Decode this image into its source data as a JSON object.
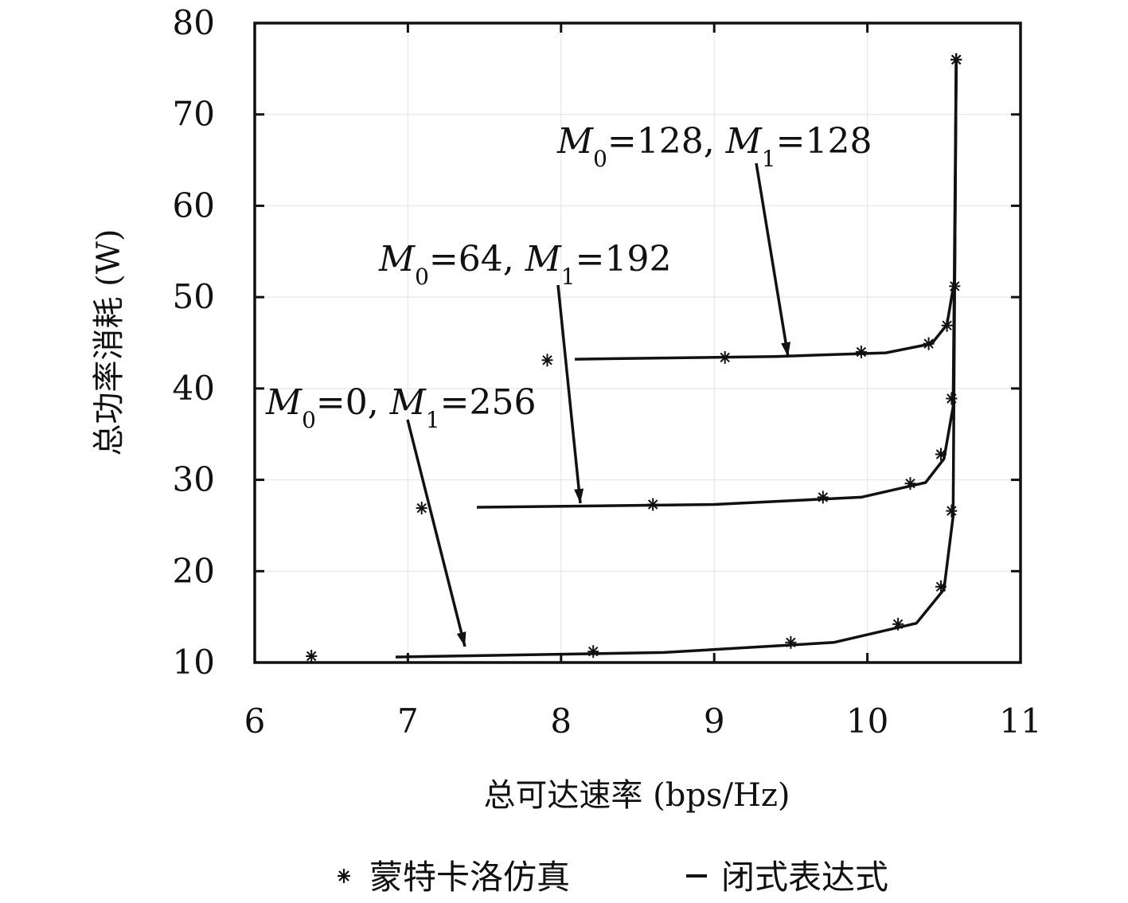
{
  "chart_data": {
    "type": "line",
    "title": "",
    "xlabel": "总可达速率 (bps/Hz)",
    "ylabel": "总功率消耗 (W)",
    "xlim": [
      6,
      11
    ],
    "ylim": [
      10,
      80
    ],
    "xticks": [
      "6",
      "7",
      "8",
      "9",
      "10",
      "11"
    ],
    "yticks": [
      "10",
      "20",
      "30",
      "40",
      "50",
      "60",
      "70",
      "80"
    ],
    "grid": true,
    "legend": {
      "placement": "bottom",
      "entries": [
        {
          "symbol": "*",
          "label": "蒙特卡洛仿真"
        },
        {
          "symbol": "–",
          "label": "闭式表达式"
        }
      ]
    },
    "series": [
      {
        "annotation": {
          "m0": "0",
          "m1": "256"
        },
        "line": {
          "x": [
            6.92,
            8.67,
            9.78,
            10.32,
            10.5,
            10.56,
            10.58
          ],
          "y": [
            10.6,
            11.1,
            12.2,
            14.3,
            18.0,
            26.0,
            76.0
          ]
        },
        "markers": {
          "x": [
            6.37,
            8.21,
            9.5,
            10.2,
            10.48,
            10.55,
            10.58
          ],
          "y": [
            10.7,
            11.2,
            12.2,
            14.2,
            18.3,
            26.6,
            76.0
          ]
        }
      },
      {
        "annotation": {
          "m0": "64",
          "m1": "192"
        },
        "line": {
          "x": [
            7.45,
            9.0,
            9.96,
            10.38,
            10.5,
            10.56,
            10.58
          ],
          "y": [
            27.0,
            27.3,
            28.1,
            29.7,
            32.3,
            38.0,
            76.0
          ]
        },
        "markers": {
          "x": [
            7.09,
            8.6,
            9.71,
            10.28,
            10.48,
            10.55,
            10.58
          ],
          "y": [
            26.9,
            27.3,
            28.1,
            29.6,
            32.8,
            38.9,
            76.0
          ]
        }
      },
      {
        "annotation": {
          "m0": "128",
          "m1": "128"
        },
        "line": {
          "x": [
            8.09,
            9.4,
            10.12,
            10.42,
            10.52,
            10.57,
            10.58
          ],
          "y": [
            43.2,
            43.5,
            43.9,
            44.9,
            47.0,
            52.0,
            76.0
          ]
        },
        "markers": {
          "x": [
            7.91,
            9.07,
            9.96,
            10.4,
            10.52,
            10.57,
            10.58
          ],
          "y": [
            43.1,
            43.4,
            44.0,
            44.9,
            46.9,
            51.2,
            76.0
          ]
        }
      }
    ]
  }
}
